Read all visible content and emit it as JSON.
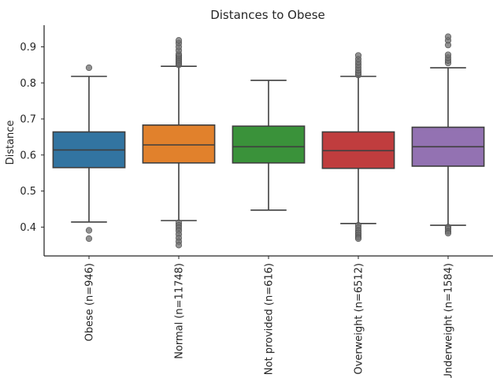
{
  "chart_data": {
    "type": "box",
    "title": "Distances to Obese",
    "xlabel": "",
    "ylabel": "Distance",
    "ylim": [
      0.32,
      0.96
    ],
    "yticks": [
      0.4,
      0.5,
      0.6,
      0.7,
      0.8,
      0.9
    ],
    "ytick_labels": [
      "0.4",
      "0.5",
      "0.6",
      "0.7",
      "0.8",
      "0.9"
    ],
    "grid": false,
    "categories": [
      "Obese (n=946)",
      "Normal (n=11748)",
      "Not provided (n=616)",
      "Overweight (n=6512)",
      "Underweight (n=1584)"
    ],
    "boxes": [
      {
        "category": "Obese (n=946)",
        "color": "#3274a1",
        "whisker_low": 0.414,
        "q1": 0.565,
        "median": 0.614,
        "q3": 0.664,
        "whisker_high": 0.818,
        "outliers": [
          0.842,
          0.391,
          0.368
        ]
      },
      {
        "category": "Normal (n=11748)",
        "color": "#e1812c",
        "whisker_low": 0.418,
        "q1": 0.578,
        "median": 0.628,
        "q3": 0.683,
        "whisker_high": 0.846,
        "outliers": [
          0.85,
          0.855,
          0.86,
          0.865,
          0.87,
          0.875,
          0.88,
          0.89,
          0.9,
          0.91,
          0.918,
          0.412,
          0.405,
          0.398,
          0.39,
          0.38,
          0.37,
          0.36,
          0.35
        ]
      },
      {
        "category": "Not provided (n=616)",
        "color": "#3a923a",
        "whisker_low": 0.447,
        "q1": 0.578,
        "median": 0.623,
        "q3": 0.68,
        "whisker_high": 0.807,
        "outliers": []
      },
      {
        "category": "Overweight (n=6512)",
        "color": "#c03d3e",
        "whisker_low": 0.41,
        "q1": 0.563,
        "median": 0.612,
        "q3": 0.664,
        "whisker_high": 0.818,
        "outliers": [
          0.822,
          0.828,
          0.835,
          0.842,
          0.85,
          0.858,
          0.866,
          0.876,
          0.405,
          0.398,
          0.39,
          0.384,
          0.378,
          0.372,
          0.368
        ]
      },
      {
        "category": "Underweight (n=1584)",
        "color": "#9372b2",
        "whisker_low": 0.405,
        "q1": 0.569,
        "median": 0.623,
        "q3": 0.677,
        "whisker_high": 0.842,
        "outliers": [
          0.855,
          0.862,
          0.87,
          0.878,
          0.905,
          0.918,
          0.928,
          0.4,
          0.395,
          0.388,
          0.383
        ]
      }
    ]
  }
}
